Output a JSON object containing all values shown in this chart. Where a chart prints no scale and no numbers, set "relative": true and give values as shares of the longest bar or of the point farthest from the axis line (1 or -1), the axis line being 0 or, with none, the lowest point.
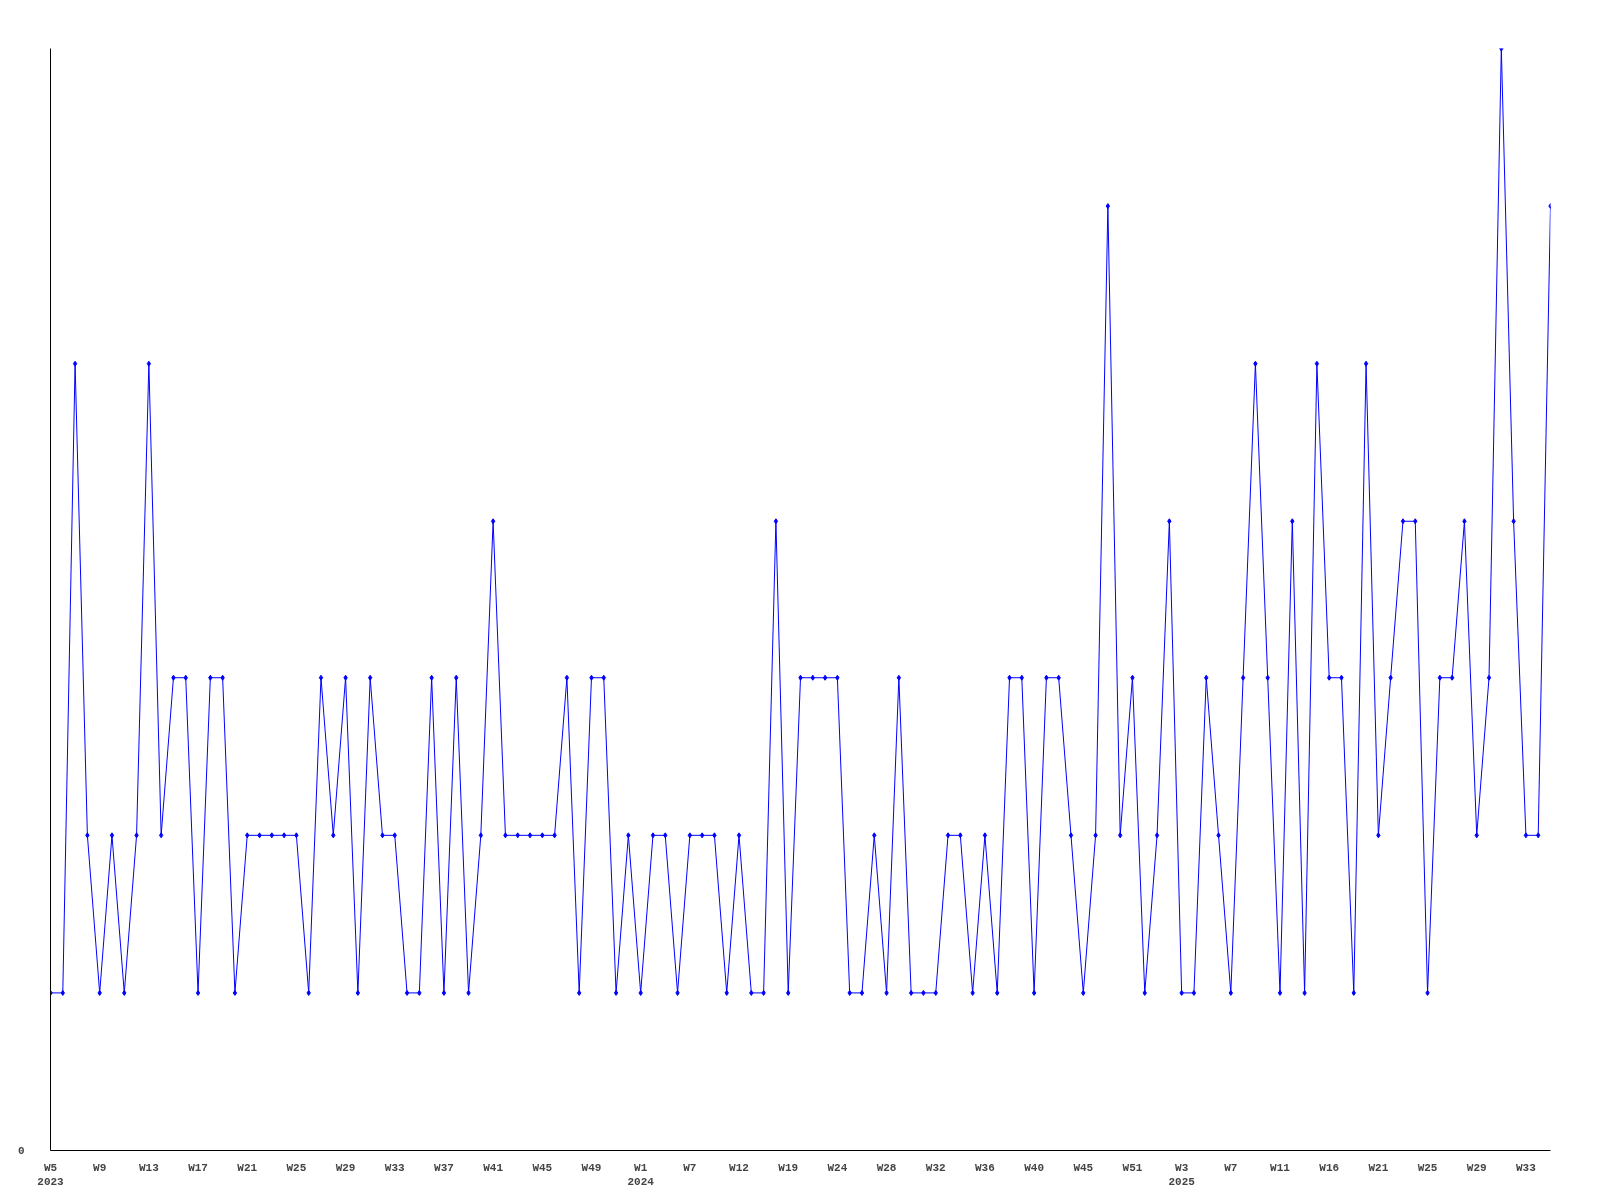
{
  "chart_data": {
    "type": "line",
    "relative": true,
    "color": "#0000ff",
    "marker": "diamond",
    "grid": false,
    "annotations": [
      "0"
    ],
    "categories": [
      "W5\n2023",
      null,
      null,
      null,
      "W9",
      null,
      null,
      null,
      "W13",
      null,
      null,
      null,
      "W17",
      null,
      null,
      null,
      "W21",
      null,
      null,
      null,
      "W25",
      null,
      null,
      null,
      "W29",
      null,
      null,
      null,
      "W33",
      null,
      null,
      null,
      "W37",
      null,
      null,
      null,
      "W41",
      null,
      null,
      null,
      "W45",
      null,
      null,
      null,
      "W49",
      null,
      null,
      null,
      "W1\n2024",
      null,
      null,
      null,
      "W7",
      null,
      null,
      null,
      "W12",
      null,
      null,
      null,
      "W19",
      null,
      null,
      null,
      "W24",
      null,
      null,
      null,
      "W28",
      null,
      null,
      null,
      "W32",
      null,
      null,
      null,
      "W36",
      null,
      null,
      null,
      "W40",
      null,
      null,
      null,
      "W45",
      null,
      null,
      null,
      "W51",
      null,
      null,
      null,
      "W3\n2025",
      null,
      null,
      null,
      "W7",
      null,
      null,
      null,
      "W11",
      null,
      null,
      null,
      "W16",
      null,
      null,
      null,
      "W21",
      null,
      null,
      null,
      "W25",
      null,
      null,
      null,
      "W29",
      null,
      null,
      null,
      "W33",
      null,
      null
    ],
    "values": [
      0.143,
      0.143,
      0.714,
      0.286,
      0.143,
      0.286,
      0.143,
      0.286,
      0.714,
      0.286,
      0.429,
      0.429,
      0.143,
      0.429,
      0.429,
      0.143,
      0.286,
      0.286,
      0.286,
      0.286,
      0.286,
      0.143,
      0.429,
      0.286,
      0.429,
      0.143,
      0.429,
      0.286,
      0.286,
      0.143,
      0.143,
      0.429,
      0.143,
      0.429,
      0.143,
      0.286,
      0.571,
      0.286,
      0.286,
      0.286,
      0.286,
      0.286,
      0.429,
      0.143,
      0.429,
      0.429,
      0.143,
      0.286,
      0.143,
      0.286,
      0.286,
      0.143,
      0.286,
      0.286,
      0.286,
      0.143,
      0.286,
      0.143,
      0.143,
      0.571,
      0.143,
      0.429,
      0.429,
      0.429,
      0.429,
      0.143,
      0.143,
      0.286,
      0.143,
      0.429,
      0.143,
      0.143,
      0.143,
      0.286,
      0.286,
      0.143,
      0.286,
      0.143,
      0.429,
      0.429,
      0.143,
      0.429,
      0.429,
      0.286,
      0.143,
      0.286,
      0.857,
      0.286,
      0.429,
      0.143,
      0.286,
      0.571,
      0.143,
      0.143,
      0.429,
      0.286,
      0.143,
      0.429,
      0.714,
      0.429,
      0.143,
      0.571,
      0.143,
      0.714,
      0.429,
      0.429,
      0.143,
      0.714,
      0.286,
      0.429,
      0.571,
      0.571,
      0.143,
      0.429,
      0.429,
      0.571,
      0.286,
      0.429,
      1,
      0.571,
      0.286,
      0.286,
      0.857
    ]
  }
}
